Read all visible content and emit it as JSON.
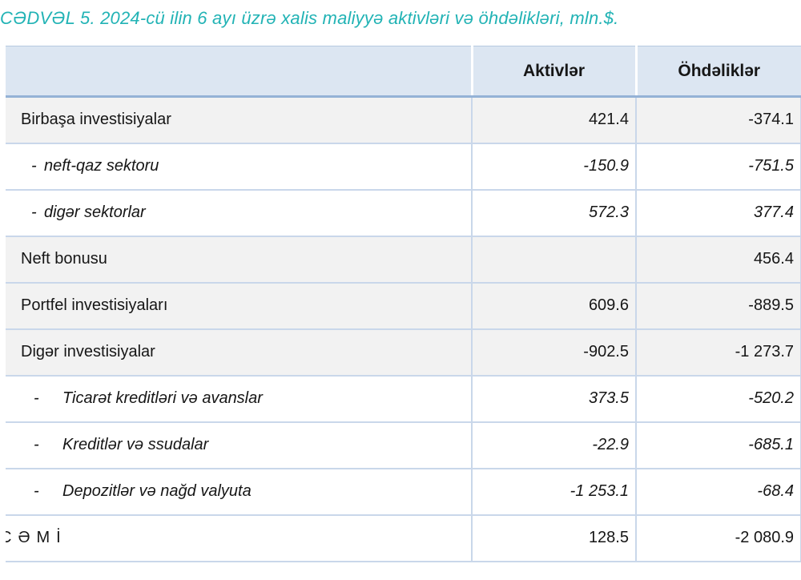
{
  "page": {
    "title": "CƏDVƏL 5. 2024-cü ilin 6 ayı üzrə xalis maliyyə aktivləri və öhdəlikləri, mln.$."
  },
  "colors": {
    "title_color": "#22b3b5",
    "header_bg": "#dce6f2",
    "header_rule": "#94b2d6",
    "grid_line": "#c9d7ea",
    "shaded_row_bg": "#f2f2f2",
    "plain_row_bg": "#ffffff",
    "text": "#161616"
  },
  "table": {
    "header": {
      "label": "",
      "col1": "Aktivlər",
      "col2": "Öhdəliklər"
    },
    "rows": [
      {
        "variant": "main",
        "bullet": "",
        "label": "Birbaşa investisiyalar",
        "values": [
          "421.4",
          "-374.1"
        ]
      },
      {
        "variant": "sub1",
        "bullet": "-",
        "label": "neft-qaz sektoru",
        "values": [
          "-150.9",
          "-751.5"
        ]
      },
      {
        "variant": "sub1",
        "bullet": "-",
        "label": "digər sektorlar",
        "values": [
          "572.3",
          "377.4"
        ]
      },
      {
        "variant": "main",
        "bullet": "",
        "label": "Neft bonusu",
        "values": [
          "",
          "456.4"
        ]
      },
      {
        "variant": "main",
        "bullet": "",
        "label": "Portfel investisiyaları",
        "values": [
          "609.6",
          "-889.5"
        ]
      },
      {
        "variant": "main",
        "bullet": "",
        "label": "Digər investisiyalar",
        "values": [
          "-902.5",
          "-1 273.7"
        ]
      },
      {
        "variant": "sub2",
        "bullet": "-",
        "label": "Ticarət kreditləri və avanslar",
        "values": [
          "373.5",
          "-520.2"
        ]
      },
      {
        "variant": "sub2",
        "bullet": "-",
        "label": "Kreditlər və ssudalar",
        "values": [
          "-22.9",
          "-685.1"
        ]
      },
      {
        "variant": "sub2",
        "bullet": "-",
        "label": "Depozitlər və nağd valyuta",
        "values": [
          "-1 253.1",
          "-68.4"
        ]
      },
      {
        "variant": "total",
        "bullet": "",
        "label": "CƏMİ",
        "values": [
          "128.5",
          "-2 080.9"
        ]
      }
    ]
  },
  "chart_data": {
    "type": "table",
    "title": "CƏDVƏL 5. 2024-cü ilin 6 ayı üzrə xalis maliyyə aktivləri və öhdəlikləri, mln.$.",
    "columns": [
      "",
      "Aktivlər",
      "Öhdəliklər"
    ],
    "rows": [
      [
        "Birbaşa investisiyalar",
        421.4,
        -374.1
      ],
      [
        "neft-qaz sektoru",
        -150.9,
        -751.5
      ],
      [
        "digər sektorlar",
        572.3,
        377.4
      ],
      [
        "Neft bonusu",
        null,
        456.4
      ],
      [
        "Portfel investisiyaları",
        609.6,
        -889.5
      ],
      [
        "Digər investisiyalar",
        -902.5,
        -1273.7
      ],
      [
        "Ticarət kreditləri və avanslar",
        373.5,
        -520.2
      ],
      [
        "Kreditlər və ssudalar",
        -22.9,
        -685.1
      ],
      [
        "Depozitlər və nağd valyuta",
        -1253.1,
        -68.4
      ],
      [
        "CƏMİ",
        128.5,
        -2080.9
      ]
    ],
    "units": "mln.$",
    "period": "2024, 6 ay"
  }
}
